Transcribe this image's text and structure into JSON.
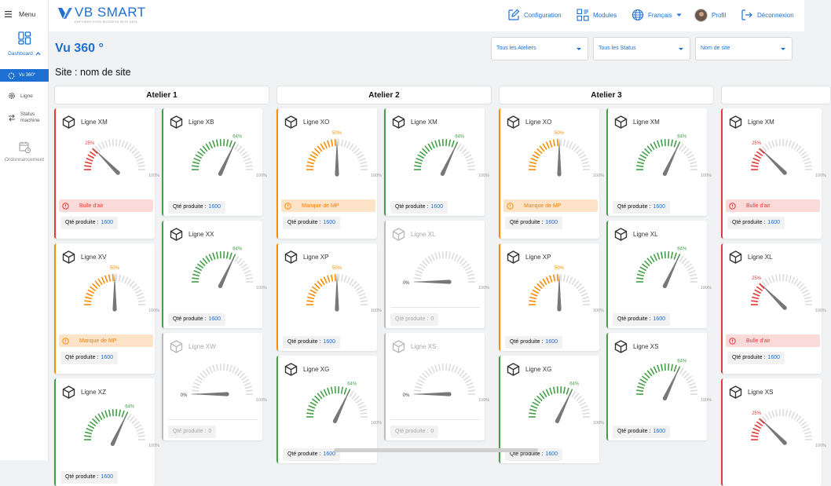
{
  "sidebar": {
    "menu_label": "Menu",
    "dashboard_label": "Dashboard",
    "vu360_label": "Vu 360°",
    "ligne_label": "Ligne",
    "status_label_1": "Status",
    "status_label_2": "machine",
    "ordo_label": "Ordonnancement"
  },
  "header": {
    "logo_text": "VB SMART",
    "logo_tagline": "EMPOWER YOUR BUSINESS WITH DATA",
    "config_label": "Configuration",
    "modules_label": "Modules",
    "language_label": "Français",
    "profile_label": "Profil",
    "logout_label": "Déconnexion"
  },
  "page": {
    "title": "Vu 360 °",
    "site_label": "Site :  nom de site"
  },
  "filters": {
    "ateliers": "Tous les Ateliers",
    "status": "Tous les Status",
    "site": "Nom de site"
  },
  "common": {
    "qty_label": "Qté produite :",
    "max_label": "100%"
  },
  "colors": {
    "primary": "#1d6fd1",
    "red": "#e53935",
    "orange": "#fb8c00",
    "green": "#43a047",
    "grey": "#bdbdbd"
  },
  "ateliers": [
    {
      "name": "Atelier 1",
      "columns": [
        [
          {
            "name": "Ligne XM",
            "status": "red",
            "pct": 25,
            "pct_label": "25%",
            "alert": "Bulle d'air",
            "qty": "1600"
          },
          {
            "name": "Ligne XV",
            "status": "orange",
            "pct": 50,
            "pct_label": "50%",
            "alert": "Manque de MP",
            "qty": "1600"
          },
          {
            "name": "Ligne XZ",
            "status": "green",
            "pct": 64,
            "pct_label": "64%",
            "alert": "",
            "qty": "1600"
          }
        ],
        [
          {
            "name": "Ligne XB",
            "status": "green",
            "pct": 64,
            "pct_label": "64%",
            "alert": "",
            "qty": "1600"
          },
          {
            "name": "Ligne XX",
            "status": "green",
            "pct": 64,
            "pct_label": "64%",
            "alert": "",
            "qty": "1600"
          },
          {
            "name": "Ligne XW",
            "status": "grey",
            "pct": 0,
            "pct_label": "0%",
            "alert": "",
            "qty": "0"
          }
        ]
      ]
    },
    {
      "name": "Atelier 2",
      "columns": [
        [
          {
            "name": "Ligne XO",
            "status": "orange",
            "pct": 50,
            "pct_label": "50%",
            "alert": "Manque de MP",
            "qty": "1600"
          },
          {
            "name": "Ligne XP",
            "status": "orange",
            "pct": 50,
            "pct_label": "50%",
            "alert": "",
            "qty": "1600"
          },
          {
            "name": "Ligne XG",
            "status": "green",
            "pct": 64,
            "pct_label": "64%",
            "alert": "",
            "qty": "1600"
          }
        ],
        [
          {
            "name": "Ligne XM",
            "status": "green",
            "pct": 64,
            "pct_label": "64%",
            "alert": "",
            "qty": "1600"
          },
          {
            "name": "Ligne XL",
            "status": "grey",
            "pct": 0,
            "pct_label": "0%",
            "alert": "",
            "qty": "0"
          },
          {
            "name": "Ligne XS",
            "status": "grey",
            "pct": 0,
            "pct_label": "0%",
            "alert": "",
            "qty": "0"
          }
        ]
      ]
    },
    {
      "name": "Atelier 3",
      "columns": [
        [
          {
            "name": "Ligne XO",
            "status": "orange",
            "pct": 50,
            "pct_label": "50%",
            "alert": "Manque de MP",
            "qty": "1600"
          },
          {
            "name": "Ligne XP",
            "status": "orange",
            "pct": 50,
            "pct_label": "50%",
            "alert": "",
            "qty": "1600"
          },
          {
            "name": "Ligne XG",
            "status": "green",
            "pct": 64,
            "pct_label": "64%",
            "alert": "",
            "qty": "1600"
          }
        ],
        [
          {
            "name": "Ligne XM",
            "status": "green",
            "pct": 64,
            "pct_label": "64%",
            "alert": "",
            "qty": "1600"
          },
          {
            "name": "Ligne XL",
            "status": "green",
            "pct": 64,
            "pct_label": "64%",
            "alert": "",
            "qty": "1600"
          },
          {
            "name": "Ligne XS",
            "status": "green",
            "pct": 64,
            "pct_label": "64%",
            "alert": "",
            "qty": "1600"
          }
        ]
      ]
    },
    {
      "name": "",
      "columns": [
        [
          {
            "name": "Ligne XM",
            "status": "red",
            "pct": 25,
            "pct_label": "25%",
            "alert": "Bulle d'air",
            "qty": "1600"
          },
          {
            "name": "Ligne XL",
            "status": "red",
            "pct": 25,
            "pct_label": "25%",
            "alert": "Bulle d'air",
            "qty": "1600"
          },
          {
            "name": "Ligne XS",
            "status": "red",
            "pct": 25,
            "pct_label": "25%",
            "alert": "",
            "qty": ""
          }
        ]
      ]
    }
  ]
}
